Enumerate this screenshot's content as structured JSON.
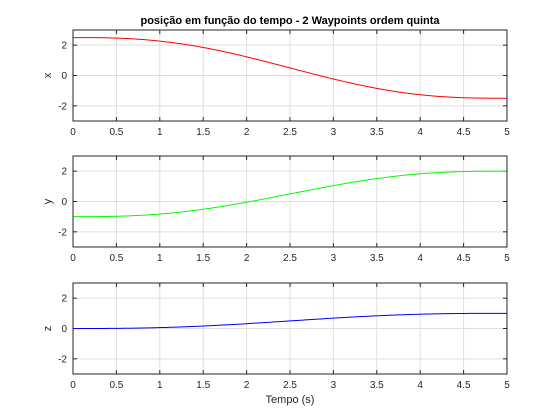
{
  "chart_data": [
    {
      "type": "line",
      "title": "posição em função do tempo - 2 Waypoints ordem quinta",
      "xlabel": "",
      "ylabel": "x",
      "xlim": [
        0,
        5
      ],
      "ylim": [
        -3,
        3
      ],
      "xticks": [
        "0",
        "0.5",
        "1",
        "1.5",
        "2",
        "2.5",
        "3",
        "3.5",
        "4",
        "4.5",
        "5"
      ],
      "yticks": [
        "-2",
        "0",
        "2"
      ],
      "grid": true,
      "series": [
        {
          "color": "#ff0000",
          "start": 2.5,
          "end": -1.5,
          "duration": 5
        }
      ]
    },
    {
      "type": "line",
      "title": "",
      "xlabel": "",
      "ylabel": "y",
      "xlim": [
        0,
        5
      ],
      "ylim": [
        -3,
        3
      ],
      "xticks": [
        "0",
        "0.5",
        "1",
        "1.5",
        "2",
        "2.5",
        "3",
        "3.5",
        "4",
        "4.5",
        "5"
      ],
      "yticks": [
        "-2",
        "0",
        "2"
      ],
      "grid": true,
      "series": [
        {
          "color": "#00ff00",
          "start": -1,
          "end": 2,
          "duration": 5
        }
      ]
    },
    {
      "type": "line",
      "title": "",
      "xlabel": "Tempo (s)",
      "ylabel": "z",
      "xlim": [
        0,
        5
      ],
      "ylim": [
        -3,
        3
      ],
      "xticks": [
        "0",
        "0.5",
        "1",
        "1.5",
        "2",
        "2.5",
        "3",
        "3.5",
        "4",
        "4.5",
        "5"
      ],
      "yticks": [
        "-2",
        "0",
        "2"
      ],
      "grid": true,
      "series": [
        {
          "color": "#0000ff",
          "start": 0,
          "end": 1,
          "duration": 5
        }
      ]
    }
  ]
}
